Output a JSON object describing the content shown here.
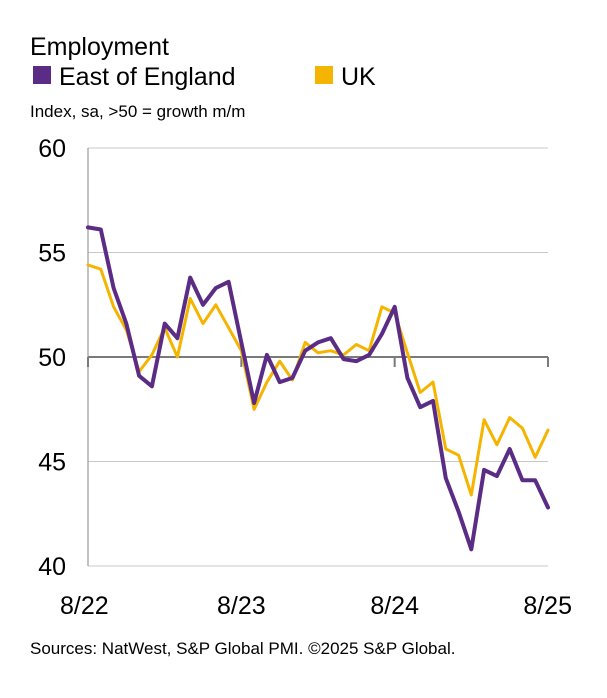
{
  "chart_data": {
    "type": "line",
    "title": "Employment",
    "subtitle": "Index, sa, >50 = growth m/m",
    "source": "Sources: NatWest, S&P Global PMI. ©2025 S&P Global.",
    "ylim": [
      40,
      60
    ],
    "yticks": [
      40,
      45,
      50,
      55,
      60
    ],
    "ytick_labels": [
      "40",
      "45",
      "50",
      "55",
      "60"
    ],
    "reference_line": 50,
    "x_count": 37,
    "xticks": [
      {
        "index": 0,
        "label": "8/22"
      },
      {
        "index": 12,
        "label": "8/23"
      },
      {
        "index": 24,
        "label": "8/24"
      },
      {
        "index": 36,
        "label": "8/25"
      }
    ],
    "series": [
      {
        "name": "East of England",
        "color": "#5b2c86",
        "values": [
          56.2,
          56.1,
          53.3,
          51.6,
          49.1,
          48.6,
          51.6,
          50.9,
          53.8,
          52.5,
          53.3,
          53.6,
          50.7,
          47.8,
          50.1,
          48.8,
          49.0,
          50.3,
          50.7,
          50.9,
          49.9,
          49.8,
          50.1,
          51.1,
          52.4,
          49.0,
          47.6,
          47.9,
          44.2,
          42.6,
          40.8,
          44.6,
          44.3,
          45.6,
          44.1,
          44.1,
          42.8
        ]
      },
      {
        "name": "UK",
        "color": "#f5b400",
        "values": [
          54.4,
          54.2,
          52.4,
          51.3,
          49.3,
          50.1,
          51.4,
          50.0,
          52.8,
          51.6,
          52.5,
          51.4,
          50.3,
          47.5,
          48.8,
          49.8,
          48.9,
          50.7,
          50.2,
          50.3,
          50.1,
          50.6,
          50.3,
          52.4,
          52.1,
          50.2,
          48.3,
          48.8,
          45.6,
          45.3,
          43.4,
          47.0,
          45.8,
          47.1,
          46.6,
          45.2,
          46.5
        ]
      }
    ]
  }
}
